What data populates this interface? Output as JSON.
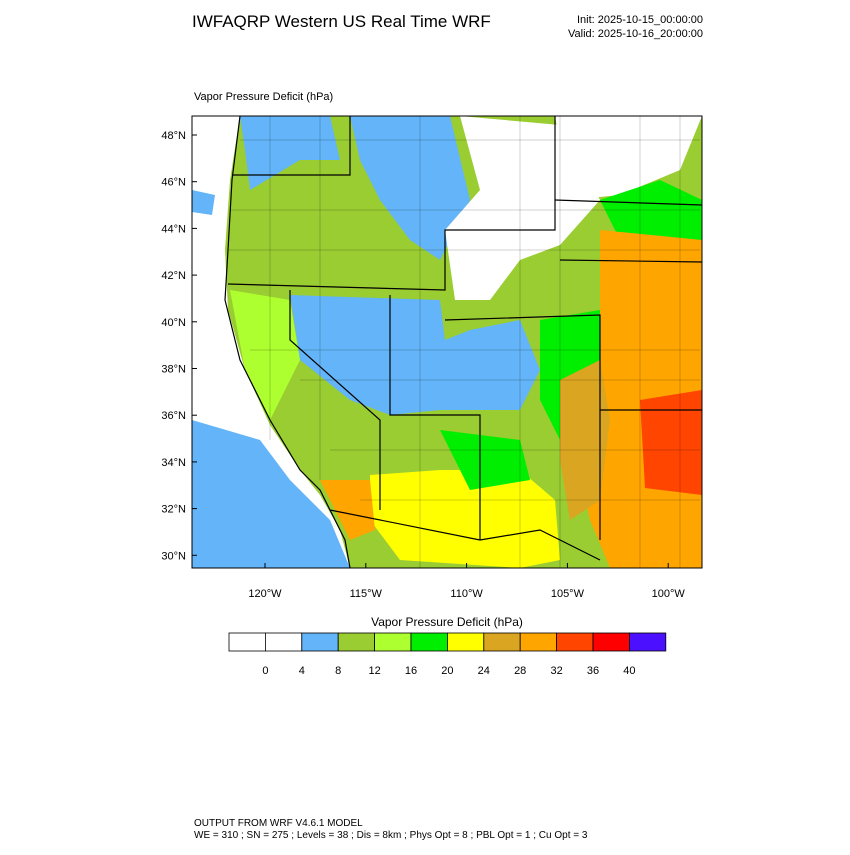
{
  "header": {
    "title": "IWFAQRP Western US Real Time WRF",
    "init": "Init: 2025-10-15_00:00:00",
    "valid": "Valid: 2025-10-16_20:00:00"
  },
  "map": {
    "title": "Vapor Pressure Deficit   (hPa)",
    "lat_labels": [
      "48°N",
      "46°N",
      "44°N",
      "42°N",
      "40°N",
      "38°N",
      "36°N",
      "34°N",
      "32°N",
      "30°N"
    ],
    "lon_labels": [
      "120°W",
      "115°W",
      "110°W",
      "105°W",
      "100°W"
    ]
  },
  "colorbar": {
    "title": "Vapor Pressure Deficit  (hPa)",
    "levels": [
      0,
      4,
      8,
      12,
      16,
      20,
      24,
      28,
      32,
      36,
      40
    ],
    "colors": [
      "#ffffff",
      "#ffffff",
      "#63b4f8",
      "#9acd32",
      "#adff2f",
      "#00ee00",
      "#ffff00",
      "#daa520",
      "#ffa500",
      "#ff4500",
      "#ff0000",
      "#4b10ff"
    ]
  },
  "footer": {
    "line1": "OUTPUT FROM WRF V4.6.1 MODEL",
    "line2": "WE = 310 ; SN = 275 ; Levels = 38 ; Dis = 8km ; Phys Opt = 8 ; PBL Opt = 1 ; Cu Opt = 3"
  }
}
